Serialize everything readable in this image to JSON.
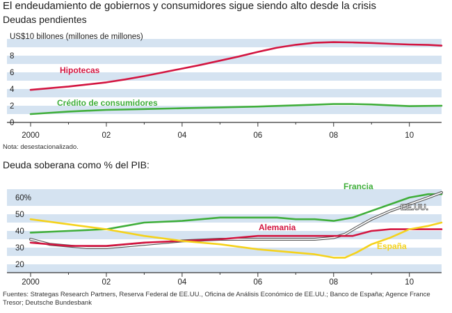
{
  "title": "El endeudamiento de gobiernos y consumidores sigue siendo alto desde la crisis",
  "note": "Nota: desestacionalizado.",
  "source": "Fuentes: Strategas Research Partners, Reserva Federal de EE.UU., Oficina de Análisis Económico de EE.UU.; Banco de España; Agence France Tresor; Deutsche Bundesbank",
  "colors": {
    "band": "#d5e3f1",
    "red": "#d31540",
    "green": "#3fae3a",
    "yellow": "#f5d21b",
    "usa": "#555555",
    "axis": "#333333"
  },
  "chart_data": [
    {
      "type": "line",
      "subtitle": "Deudas pendientes",
      "ylabel": "US$10 billones (millones de millones)",
      "x_ticks": [
        "2000",
        "02",
        "04",
        "06",
        "08",
        "10"
      ],
      "y_ticks": [
        "0",
        "2",
        "4",
        "6",
        "8"
      ],
      "xlim": [
        2000,
        2010.85
      ],
      "ylim": [
        0,
        10
      ],
      "grid": "alternating horizontal bands",
      "series": [
        {
          "name": "Hipotecas",
          "color": "#d31540",
          "x": [
            2000,
            2000.5,
            2001,
            2001.5,
            2002,
            2002.5,
            2003,
            2003.5,
            2004,
            2004.5,
            2005,
            2005.5,
            2006,
            2006.5,
            2007,
            2007.5,
            2008,
            2008.5,
            2009,
            2009.5,
            2010,
            2010.5,
            2010.85
          ],
          "values": [
            3.9,
            4.1,
            4.3,
            4.55,
            4.8,
            5.15,
            5.55,
            6.0,
            6.45,
            6.9,
            7.4,
            7.9,
            8.45,
            8.95,
            9.3,
            9.55,
            9.62,
            9.58,
            9.52,
            9.42,
            9.33,
            9.28,
            9.2
          ]
        },
        {
          "name": "Crédito de consumidores",
          "color": "#3fae3a",
          "x": [
            2000,
            2001,
            2002,
            2003,
            2004,
            2005,
            2006,
            2007,
            2008,
            2008.5,
            2009,
            2009.5,
            2010,
            2010.85
          ],
          "values": [
            1.0,
            1.3,
            1.5,
            1.6,
            1.7,
            1.8,
            1.9,
            2.05,
            2.2,
            2.2,
            2.15,
            2.05,
            1.95,
            2.0
          ]
        }
      ],
      "annotations": [
        "Hipotecas",
        "Crédito de consumidores"
      ]
    },
    {
      "type": "line",
      "subtitle": "Deuda soberana como % del PIB:",
      "x_ticks": [
        "2000",
        "02",
        "04",
        "06",
        "08",
        "10"
      ],
      "y_ticks": [
        "20",
        "30",
        "40",
        "50",
        "60%"
      ],
      "xlim": [
        2000,
        2010.85
      ],
      "ylim": [
        15,
        65
      ],
      "grid": "alternating horizontal bands",
      "series": [
        {
          "name": "Francia",
          "color": "#3fae3a",
          "x": [
            2000,
            2001,
            2002,
            2002.5,
            2003,
            2004,
            2004.5,
            2005,
            2006,
            2006.5,
            2007,
            2007.5,
            2008,
            2008.5,
            2009,
            2009.5,
            2010,
            2010.5,
            2010.85
          ],
          "values": [
            39,
            40,
            41,
            43,
            45,
            46,
            47,
            48,
            48,
            48,
            47,
            47,
            46,
            48,
            52,
            56,
            60,
            62,
            62
          ]
        },
        {
          "name": "EE.UU.",
          "color": "#555555",
          "x": [
            2000,
            2000.5,
            2001,
            2001.5,
            2002,
            2003,
            2004,
            2005,
            2006,
            2007,
            2007.5,
            2008,
            2008.3,
            2008.6,
            2009,
            2009.5,
            2010,
            2010.5,
            2010.85
          ],
          "values": [
            35,
            32,
            31,
            30,
            30,
            32,
            34,
            35,
            35,
            35,
            35,
            36,
            38,
            42,
            47,
            52,
            56,
            60,
            63
          ]
        },
        {
          "name": "Alemania",
          "color": "#d31540",
          "x": [
            2000,
            2001,
            2002,
            2003,
            2004,
            2005,
            2006,
            2007,
            2008,
            2008.5,
            2009,
            2009.5,
            2010,
            2010.5,
            2010.85
          ],
          "values": [
            33,
            31,
            31,
            33,
            34,
            35,
            37,
            37,
            37,
            37,
            40,
            41,
            41,
            41,
            41
          ]
        },
        {
          "name": "España",
          "color": "#f5d21b",
          "x": [
            2000,
            2001,
            2002,
            2003,
            2004,
            2005,
            2006,
            2007,
            2007.5,
            2008,
            2008.3,
            2008.6,
            2009,
            2009.5,
            2010,
            2010.5,
            2010.85
          ],
          "values": [
            47,
            44,
            41,
            37,
            34,
            32,
            29,
            27,
            26,
            24,
            24,
            27,
            32,
            36,
            41,
            43,
            45
          ]
        }
      ],
      "annotations": [
        "Francia",
        "EE.UU.",
        "Alemania",
        "España"
      ]
    }
  ]
}
